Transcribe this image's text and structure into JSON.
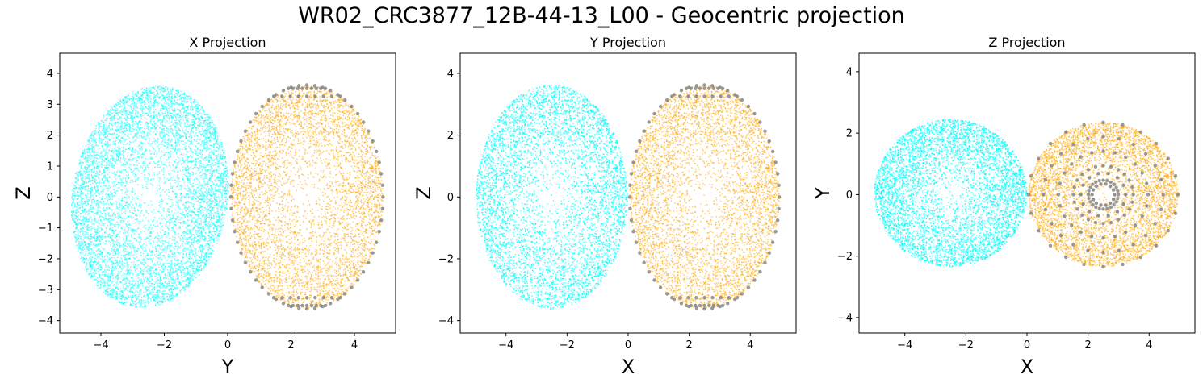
{
  "figure": {
    "title": "WR02_CRC3877_12B-44-13_L00 - Geocentric projection"
  },
  "colors": {
    "cloud_a": "#00ffff",
    "cloud_b": "#ffa500",
    "boundary": "#808080"
  },
  "chart_data": [
    {
      "type": "scatter",
      "title": "X Projection",
      "xlabel": "Y",
      "ylabel": "Z",
      "xlim": [
        -5.3,
        5.3
      ],
      "ylim": [
        -4.4,
        4.65
      ],
      "xticks": [
        -4,
        -2,
        0,
        2,
        4
      ],
      "yticks": [
        -4,
        -3,
        -2,
        -1,
        0,
        1,
        2,
        3,
        4
      ],
      "grid": false,
      "series": [
        {
          "color": "#00ffff",
          "shape": "ellipse",
          "center": [
            -2.45,
            0.0
          ],
          "radii": [
            2.45,
            3.6
          ],
          "tilt_deg": -8,
          "points": 7000
        },
        {
          "color": "#ffa500",
          "shape": "ellipse",
          "center": [
            2.5,
            0.0
          ],
          "radii": [
            2.4,
            3.62
          ],
          "tilt_deg": 0,
          "points": 5000
        },
        {
          "color": "#808080",
          "shape": "grid",
          "center": [
            2.5,
            0.0
          ],
          "radii": [
            2.4,
            3.62
          ]
        }
      ]
    },
    {
      "type": "scatter",
      "title": "Y Projection",
      "xlabel": "X",
      "ylabel": "Z",
      "xlim": [
        -5.5,
        5.5
      ],
      "ylim": [
        -4.4,
        4.65
      ],
      "xticks": [
        -4,
        -2,
        0,
        2,
        4
      ],
      "yticks": [
        -4,
        -2,
        0,
        2,
        4
      ],
      "grid": false,
      "series": [
        {
          "color": "#00ffff",
          "shape": "ellipse",
          "center": [
            -2.5,
            0.0
          ],
          "radii": [
            2.48,
            3.62
          ],
          "tilt_deg": 0,
          "points": 7000
        },
        {
          "color": "#ffa500",
          "shape": "ellipse",
          "center": [
            2.5,
            0.0
          ],
          "radii": [
            2.45,
            3.62
          ],
          "tilt_deg": 0,
          "points": 5000
        },
        {
          "color": "#808080",
          "shape": "grid",
          "center": [
            2.5,
            0.0
          ],
          "radii": [
            2.45,
            3.62
          ]
        }
      ]
    },
    {
      "type": "scatter",
      "title": "Z Projection",
      "xlabel": "X",
      "ylabel": "Y",
      "xlim": [
        -5.5,
        5.5
      ],
      "ylim": [
        -4.5,
        4.6
      ],
      "xticks": [
        -4,
        -2,
        0,
        2,
        4
      ],
      "yticks": [
        -4,
        -2,
        0,
        2,
        4
      ],
      "grid": false,
      "series": [
        {
          "color": "#00ffff",
          "shape": "ellipse",
          "center": [
            -2.5,
            0.05
          ],
          "radii": [
            2.5,
            2.4
          ],
          "tilt_deg": 0,
          "points": 7000
        },
        {
          "color": "#ffa500",
          "shape": "ellipse",
          "center": [
            2.5,
            0.0
          ],
          "radii": [
            2.45,
            2.35
          ],
          "tilt_deg": 0,
          "points": 5000
        },
        {
          "color": "#808080",
          "shape": "radial",
          "center": [
            2.5,
            0.0
          ],
          "radii": [
            2.45,
            2.35
          ]
        }
      ]
    }
  ]
}
